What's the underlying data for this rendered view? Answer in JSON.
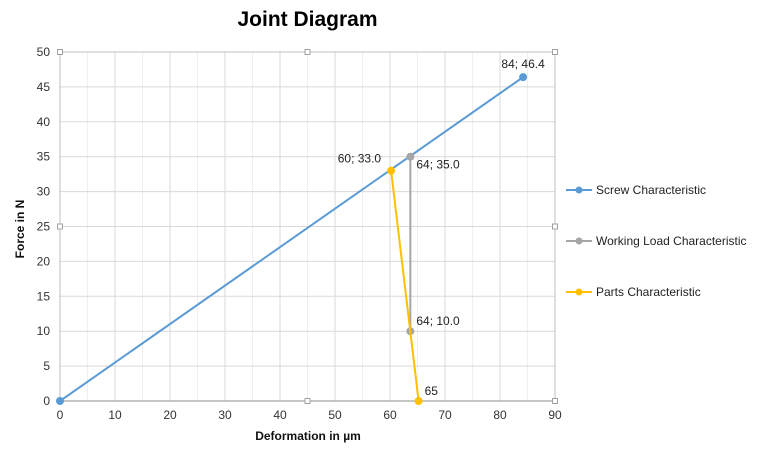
{
  "chart_data": {
    "type": "scatter",
    "title": "Joint Diagram",
    "xlabel": "Deformation in µm",
    "ylabel": "Force in N",
    "xlim": [
      0,
      90
    ],
    "ylim": [
      0,
      50
    ],
    "x_ticks": [
      "0",
      "10",
      "20",
      "30",
      "40",
      "50",
      "60",
      "70",
      "80",
      "90"
    ],
    "y_ticks": [
      "0",
      "5",
      "10",
      "15",
      "20",
      "25",
      "30",
      "35",
      "40",
      "45",
      "50"
    ],
    "grid": true,
    "legend_position": "right",
    "series": [
      {
        "name": "Screw Characteristic",
        "color": "#5b9bd5",
        "points": [
          {
            "x": 0,
            "y": 0,
            "label": ""
          },
          {
            "x": 84.2,
            "y": 46.4,
            "label": "84; 46.4"
          }
        ]
      },
      {
        "name": "Working Load Characteristic",
        "color": "#a5a5a5",
        "points": [
          {
            "x": 63.7,
            "y": 35.0,
            "label": "64; 35.0"
          },
          {
            "x": 63.7,
            "y": 10.0,
            "label": "64; 10.0"
          }
        ]
      },
      {
        "name": "Parts Characteristic",
        "color": "#ffc000",
        "points": [
          {
            "x": 60.2,
            "y": 33.0,
            "label": "60; 33.0"
          },
          {
            "x": 65.2,
            "y": 0,
            "label": "65"
          }
        ]
      }
    ]
  }
}
